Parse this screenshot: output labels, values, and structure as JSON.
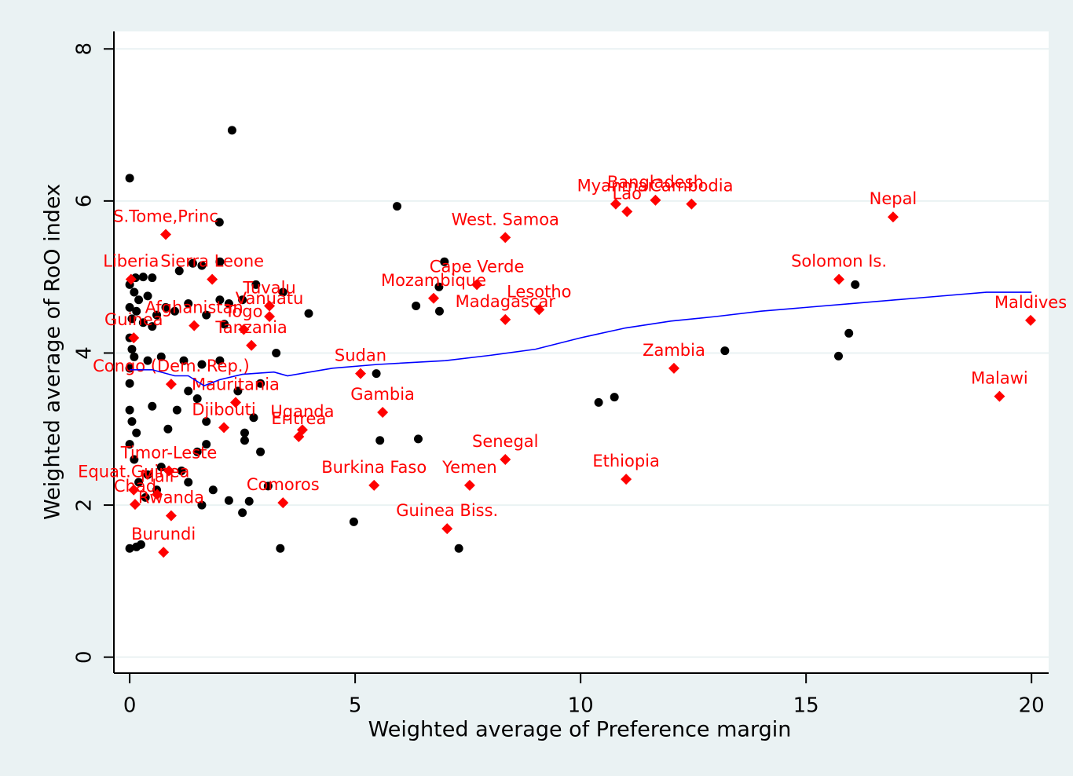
{
  "chart_data": {
    "type": "scatter",
    "x_label": "Weighted average of Preference margin",
    "y_label": "Weighted average of RoO index",
    "xlim": [
      -0.35,
      20.38
    ],
    "ylim": [
      -0.21,
      8.23
    ],
    "xticks": [
      0,
      5,
      10,
      15,
      20
    ],
    "yticks": [
      0,
      2,
      4,
      6,
      8
    ],
    "grid": true,
    "series": [
      {
        "kind": "markers",
        "color": "#000000",
        "x": [
          0.0,
          2.27,
          5.93,
          1.99,
          0.13,
          0.5,
          0.3,
          1.1,
          1.4,
          2.0,
          6.98,
          1.6,
          0.0,
          0.1,
          0.2,
          0.4,
          0.0,
          0.15,
          0.05,
          0.3,
          0.5,
          0.6,
          0.8,
          1.0,
          1.3,
          1.7,
          2.0,
          2.2,
          2.5,
          2.8,
          3.4,
          3.97,
          6.35,
          6.87,
          6.86,
          2.1,
          0.0,
          0.05,
          0.1,
          0.0,
          0.0,
          0.4,
          0.7,
          1.2,
          1.6,
          2.0,
          3.25,
          5.47,
          13.2,
          15.72,
          15.95,
          16.09,
          10.4,
          10.75,
          0.0,
          0.05,
          0.15,
          0.5,
          1.05,
          1.3,
          1.5,
          2.4,
          2.9,
          2.75,
          2.55,
          2.55,
          1.7,
          0.85,
          1.5,
          1.7,
          2.9,
          5.55,
          6.4,
          0.0,
          0.1,
          0.4,
          0.7,
          1.15,
          1.3,
          1.85,
          3.07,
          2.2,
          2.65,
          1.6,
          2.5,
          4.97,
          7.3,
          3.34,
          0.0,
          0.15,
          0.25,
          0.35,
          0.2,
          0.6
        ],
        "values": [
          6.3,
          6.93,
          5.93,
          5.72,
          4.99,
          4.99,
          5.0,
          5.08,
          5.18,
          5.2,
          5.2,
          5.15,
          4.9,
          4.8,
          4.7,
          4.75,
          4.6,
          4.55,
          4.45,
          4.4,
          4.35,
          4.5,
          4.6,
          4.55,
          4.65,
          4.5,
          4.7,
          4.65,
          4.7,
          4.9,
          4.8,
          4.52,
          4.62,
          4.55,
          4.87,
          4.38,
          4.2,
          4.05,
          3.95,
          3.8,
          3.6,
          3.9,
          3.95,
          3.9,
          3.85,
          3.9,
          4.0,
          3.73,
          4.03,
          3.96,
          4.26,
          4.9,
          3.35,
          3.42,
          3.25,
          3.1,
          2.95,
          3.3,
          3.25,
          3.5,
          3.4,
          3.5,
          3.6,
          3.15,
          2.95,
          2.85,
          3.1,
          3.0,
          2.7,
          2.8,
          2.7,
          2.85,
          2.87,
          2.8,
          2.6,
          2.4,
          2.5,
          2.45,
          2.3,
          2.2,
          2.25,
          2.06,
          2.05,
          2.0,
          1.9,
          1.78,
          1.43,
          1.43,
          1.43,
          1.45,
          1.48,
          2.1,
          2.3,
          2.2
        ]
      },
      {
        "kind": "labeled-markers",
        "color": "#ff0000",
        "labels": [
          "S.Tome,Princ",
          "Liberia",
          "Sierra Leone",
          "Tuvalu",
          "Vanuatu",
          "Afghanistan",
          "Togo",
          "Tanzania",
          "Guinea",
          "Mauritania",
          "Djibouti",
          "Uganda",
          "Eritrea",
          "Congo (Dem. Rep.)",
          "Mozambique",
          "Cape Verde",
          "West. Samoa",
          "Madagascar",
          "Lesotho",
          "Sudan",
          "Gambia",
          "Senegal",
          "Burkina Faso",
          "Yemen",
          "Guinea Biss.",
          "Ethiopia",
          "Comoros",
          "Zambia",
          "Solomon Is.",
          "Maldives",
          "Malawi",
          "Nepal",
          "Bangladesh",
          "Myanmar",
          "Lao",
          "Cambodia",
          "Mali",
          "Rwanda",
          "Burundi",
          "Timor-Leste",
          "Equat.Guinea",
          "Chad"
        ],
        "x": [
          0.8,
          0.03,
          1.83,
          3.1,
          3.1,
          1.43,
          2.53,
          2.7,
          0.09,
          2.35,
          2.09,
          3.83,
          3.75,
          0.92,
          6.74,
          7.7,
          8.33,
          8.33,
          9.08,
          5.12,
          5.61,
          8.33,
          5.42,
          7.54,
          7.04,
          11.01,
          3.4,
          12.07,
          15.73,
          19.98,
          19.29,
          16.93,
          11.66,
          10.78,
          11.03,
          12.46,
          0.61,
          0.92,
          0.75,
          0.87,
          0.09,
          0.12
        ],
        "values": [
          5.56,
          4.97,
          4.97,
          4.62,
          4.48,
          4.36,
          4.31,
          4.1,
          4.2,
          3.35,
          3.02,
          2.99,
          2.9,
          3.59,
          4.72,
          4.9,
          5.52,
          4.44,
          4.57,
          3.73,
          3.22,
          2.6,
          2.26,
          2.26,
          1.69,
          2.34,
          2.03,
          3.8,
          4.97,
          4.43,
          3.43,
          5.79,
          6.01,
          5.96,
          5.86,
          5.96,
          2.14,
          1.86,
          1.38,
          2.45,
          2.2,
          2.01
        ]
      },
      {
        "kind": "line",
        "color": "#0000ff",
        "x": [
          0,
          0.5,
          1.0,
          1.3,
          1.65,
          2.0,
          2.5,
          3.2,
          3.5,
          4.5,
          5.5,
          7,
          8,
          9,
          10,
          11,
          12,
          13,
          14,
          15,
          16,
          17,
          18,
          19,
          20
        ],
        "values": [
          3.78,
          3.78,
          3.7,
          3.7,
          3.57,
          3.65,
          3.72,
          3.75,
          3.7,
          3.8,
          3.85,
          3.9,
          3.97,
          4.05,
          4.2,
          4.33,
          4.42,
          4.48,
          4.55,
          4.6,
          4.65,
          4.7,
          4.75,
          4.8,
          4.8
        ]
      }
    ]
  }
}
